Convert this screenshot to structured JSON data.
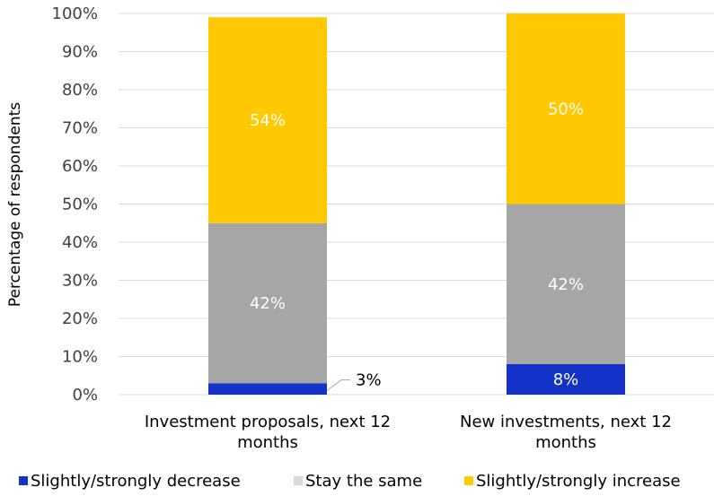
{
  "chart_data": {
    "type": "bar",
    "stacked": true,
    "ylabel": "Percentage of respondents",
    "ylim": [
      0,
      100
    ],
    "yticks": [
      "0%",
      "10%",
      "20%",
      "30%",
      "40%",
      "50%",
      "60%",
      "70%",
      "80%",
      "90%",
      "100%"
    ],
    "categories": [
      [
        "Investment proposals, next 12",
        "months"
      ],
      [
        "New investments, next 12",
        "months"
      ]
    ],
    "series": [
      {
        "name": "Slightly/strongly decrease",
        "color": "#1432c8",
        "values": [
          3,
          8
        ],
        "labels": [
          "3%",
          "8%"
        ]
      },
      {
        "name": "Stay the same",
        "color": "#a6a6a6",
        "values": [
          42,
          42
        ],
        "labels": [
          "42%",
          "42%"
        ]
      },
      {
        "name": "Slightly/strongly increase",
        "color": "#ffc800",
        "values": [
          54,
          50
        ],
        "labels": [
          "54%",
          "50%"
        ]
      }
    ],
    "legend_position": "bottom",
    "grid": true
  }
}
